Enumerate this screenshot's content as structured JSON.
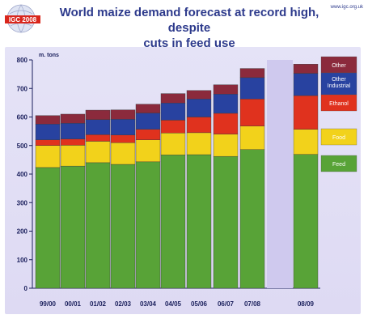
{
  "header": {
    "logo_text": "IGC 2008",
    "title_line1": "World maize demand forecast at record high, despite",
    "title_line2": "cuts in feed use",
    "url": "www.igc.org.uk"
  },
  "chart_data": {
    "type": "bar",
    "stacked": true,
    "title": "World maize demand forecast at record high, despite cuts in feed use",
    "ylabel": "m. tons",
    "ylim": [
      0,
      800
    ],
    "yticks": [
      0,
      100,
      200,
      300,
      400,
      500,
      600,
      700,
      800
    ],
    "categories": [
      "99/00",
      "00/01",
      "01/02",
      "02/03",
      "03/04",
      "04/05",
      "05/06",
      "06/07",
      "07/08",
      "08/09"
    ],
    "series": [
      {
        "name": "Feed",
        "color": "#58a337",
        "values": [
          423,
          428,
          440,
          434,
          443,
          467,
          468,
          462,
          486,
          469
        ]
      },
      {
        "name": "Food",
        "color": "#f2d21b",
        "values": [
          77,
          73,
          75,
          76,
          77,
          77,
          77,
          78,
          82,
          88
        ]
      },
      {
        "name": "Ethanol",
        "color": "#e0321e",
        "values": [
          20,
          22,
          23,
          27,
          37,
          45,
          55,
          73,
          95,
          118
        ]
      },
      {
        "name": "Other Industrial",
        "color": "#2842a0",
        "values": [
          55,
          55,
          53,
          55,
          57,
          60,
          63,
          67,
          75,
          78
        ]
      },
      {
        "name": "Other",
        "color": "#8b2a3c",
        "values": [
          30,
          32,
          33,
          33,
          31,
          33,
          30,
          33,
          32,
          32
        ]
      }
    ],
    "legend_position": "right",
    "grid": false
  }
}
